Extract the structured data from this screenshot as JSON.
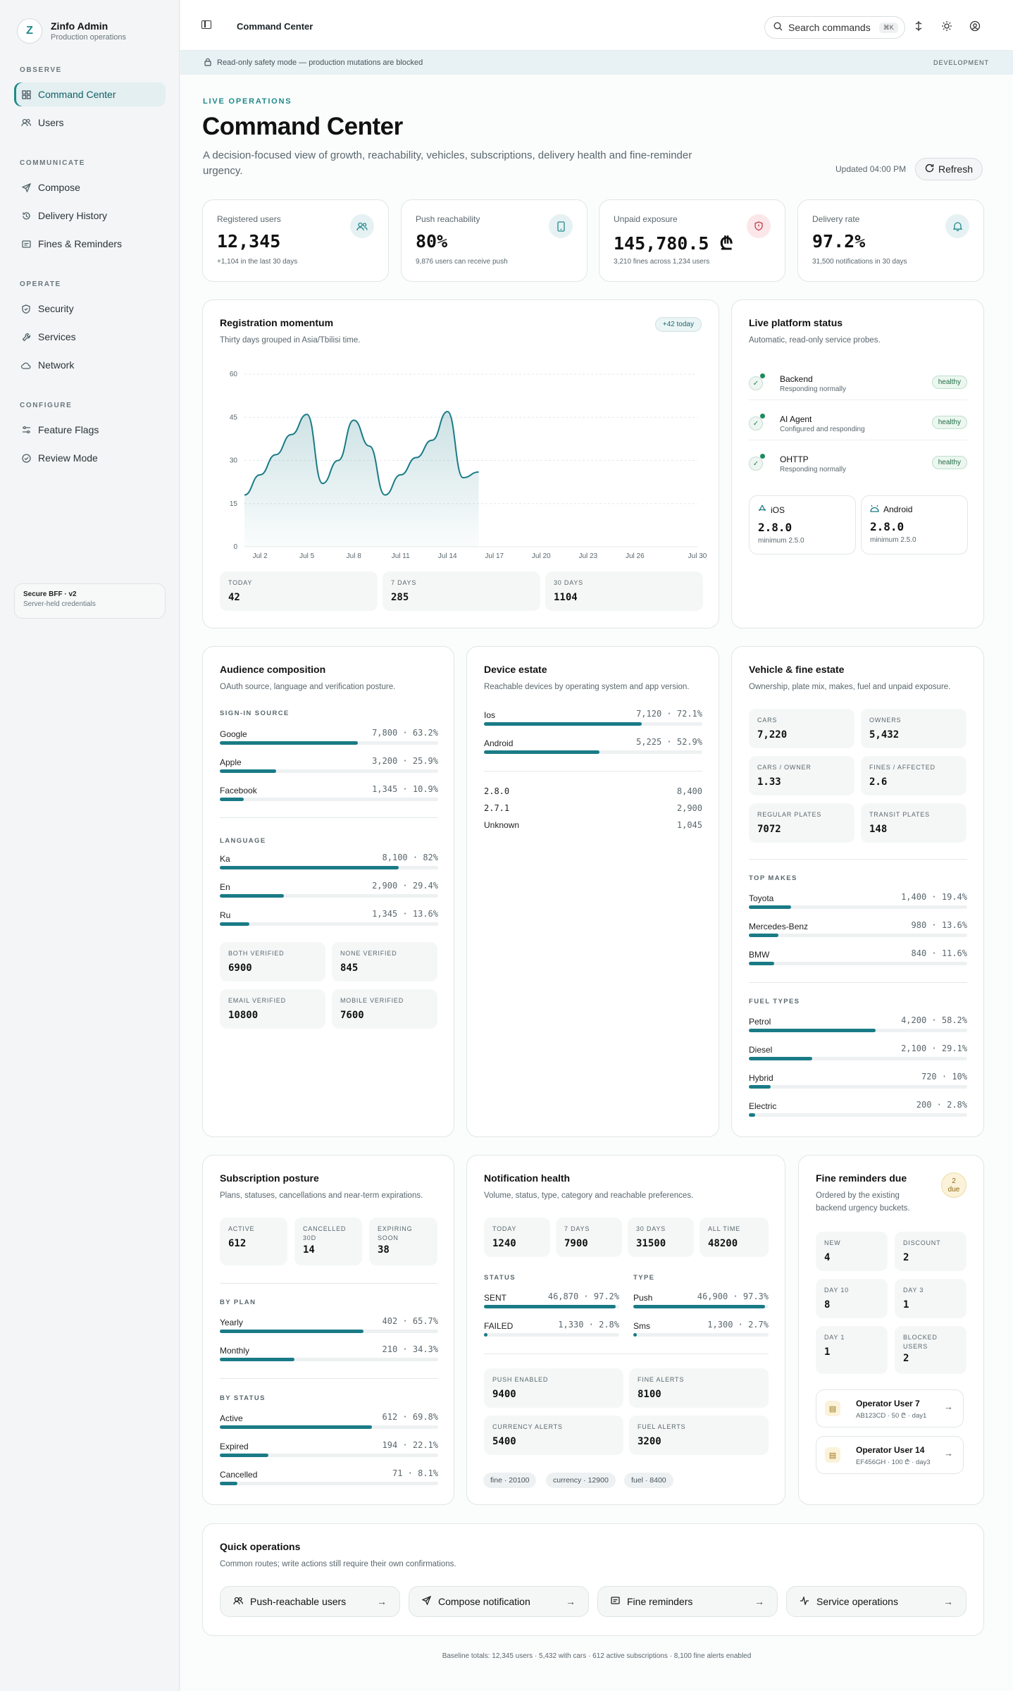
{
  "brand": {
    "name": "Zinfo Admin",
    "subtitle": "Production operations",
    "logo_letter": "Z"
  },
  "nav": {
    "sections": [
      "OBSERVE",
      "COMMUNICATE",
      "OPERATE",
      "CONFIGURE"
    ],
    "items": [
      {
        "label": "Command Center",
        "icon": "grid-icon",
        "active": true
      },
      {
        "label": "Users",
        "icon": "users-icon"
      },
      {
        "label": "Compose",
        "icon": "send-icon"
      },
      {
        "label": "Delivery History",
        "icon": "history-icon"
      },
      {
        "label": "Fines & Reminders",
        "icon": "receipt-icon"
      },
      {
        "label": "Security",
        "icon": "shield-icon"
      },
      {
        "label": "Services",
        "icon": "wrench-icon"
      },
      {
        "label": "Network",
        "icon": "cloud-icon"
      },
      {
        "label": "Feature Flags",
        "icon": "sliders-icon"
      },
      {
        "label": "Review Mode",
        "icon": "check-circle-icon"
      }
    ],
    "footer": {
      "title": "Secure BFF · v2",
      "subtitle": "Server-held credentials"
    }
  },
  "topbar": {
    "title": "Command Center",
    "search_placeholder": "Search commands",
    "search_kbd": "⌘K"
  },
  "banner": {
    "text": "Read-only safety mode — production mutations are blocked",
    "env": "DEVELOPMENT"
  },
  "header": {
    "eyebrow": "LIVE OPERATIONS",
    "title": "Command Center",
    "lede": "A decision-focused view of growth, reachability, vehicles, subscriptions, delivery health and fine-reminder urgency.",
    "updated": "Updated 04:00 PM",
    "refresh": "Refresh"
  },
  "kpis": [
    {
      "label": "Registered users",
      "value": "12,345",
      "sub": "+1,104 in the last 30 days",
      "icon": "users-icon"
    },
    {
      "label": "Push reachability",
      "value": "80%",
      "sub": "9,876 users can receive push",
      "icon": "phone-icon"
    },
    {
      "label": "Unpaid exposure",
      "value": "145,780.5 ₾",
      "sub": "3,210 fines across 1,234 users",
      "icon": "shield-alert-icon"
    },
    {
      "label": "Delivery rate",
      "value": "97.2%",
      "sub": "31,500 notifications in 30 days",
      "icon": "bell-icon"
    }
  ],
  "registration": {
    "title": "Registration momentum",
    "subtitle": "Thirty days grouped in Asia/Tbilisi time.",
    "badge": "+42 today",
    "stats": [
      {
        "label": "TODAY",
        "value": "42"
      },
      {
        "label": "7 DAYS",
        "value": "285"
      },
      {
        "label": "30 DAYS",
        "value": "1104"
      }
    ]
  },
  "chart_data": {
    "type": "area",
    "title": "Registration momentum",
    "x": [
      "Jul 1",
      "Jul 2",
      "Jul 3",
      "Jul 4",
      "Jul 5",
      "Jul 6",
      "Jul 7",
      "Jul 8",
      "Jul 9",
      "Jul 10",
      "Jul 11",
      "Jul 12",
      "Jul 13",
      "Jul 14",
      "Jul 15",
      "Jul 16"
    ],
    "values": [
      18,
      25,
      32,
      39,
      46,
      22,
      30,
      44,
      35,
      18,
      25,
      31,
      37,
      47,
      24,
      26
    ],
    "x_ticks": [
      "Jul 2",
      "Jul 5",
      "Jul 8",
      "Jul 11",
      "Jul 14",
      "Jul 17",
      "Jul 20",
      "Jul 23",
      "Jul 26",
      "Jul 30"
    ],
    "y_ticks": [
      0,
      15,
      30,
      45,
      60
    ],
    "ylim": [
      0,
      60
    ],
    "x_range": [
      "Jul 1",
      "Jul 30"
    ],
    "grid": true,
    "color": "#1a7b86"
  },
  "platform": {
    "title": "Live platform status",
    "subtitle": "Automatic, read-only service probes.",
    "services": [
      {
        "name": "Backend",
        "status": "Responding normally",
        "badge": "healthy"
      },
      {
        "name": "AI Agent",
        "status": "Configured and responding",
        "badge": "healthy"
      },
      {
        "name": "OHTTP",
        "status": "Responding normally",
        "badge": "healthy"
      }
    ],
    "versions": [
      {
        "name": "iOS",
        "version": "2.8.0",
        "min": "minimum 2.5.0",
        "icon": "app-store-icon"
      },
      {
        "name": "Android",
        "version": "2.8.0",
        "min": "minimum 2.5.0",
        "icon": "android-icon"
      }
    ]
  },
  "audience": {
    "title": "Audience composition",
    "subtitle": "OAuth source, language and verification posture.",
    "signin_label": "SIGN-IN SOURCE",
    "signin": [
      {
        "name": "Google",
        "metric": "7,800 · 63.2%",
        "pct": 63.2
      },
      {
        "name": "Apple",
        "metric": "3,200 · 25.9%",
        "pct": 25.9
      },
      {
        "name": "Facebook",
        "metric": "1,345 · 10.9%",
        "pct": 10.9
      }
    ],
    "language_label": "LANGUAGE",
    "languages": [
      {
        "name": "Ka",
        "metric": "8,100 · 82%",
        "pct": 82
      },
      {
        "name": "En",
        "metric": "2,900 · 29.4%",
        "pct": 29.4
      },
      {
        "name": "Ru",
        "metric": "1,345 · 13.6%",
        "pct": 13.6
      }
    ],
    "verification": [
      {
        "label": "BOTH VERIFIED",
        "value": "6900"
      },
      {
        "label": "NONE VERIFIED",
        "value": "845"
      },
      {
        "label": "EMAIL VERIFIED",
        "value": "10800"
      },
      {
        "label": "MOBILE VERIFIED",
        "value": "7600"
      }
    ]
  },
  "devices": {
    "title": "Device estate",
    "subtitle": "Reachable devices by operating system and app version.",
    "os": [
      {
        "name": "Ios",
        "metric": "7,120 · 72.1%",
        "pct": 72.1
      },
      {
        "name": "Android",
        "metric": "5,225 · 52.9%",
        "pct": 52.9
      }
    ],
    "versions": [
      {
        "name": "2.8.0",
        "count": "8,400"
      },
      {
        "name": "2.7.1",
        "count": "2,900"
      },
      {
        "name": "Unknown",
        "count": "1,045"
      }
    ]
  },
  "vehicles": {
    "title": "Vehicle & fine estate",
    "subtitle": "Ownership, plate mix, makes, fuel and unpaid exposure.",
    "stats": [
      {
        "label": "CARS",
        "value": "7,220"
      },
      {
        "label": "OWNERS",
        "value": "5,432"
      },
      {
        "label": "CARS / OWNER",
        "value": "1.33"
      },
      {
        "label": "FINES / AFFECTED",
        "value": "2.6"
      },
      {
        "label": "REGULAR PLATES",
        "value": "7072"
      },
      {
        "label": "TRANSIT PLATES",
        "value": "148"
      }
    ],
    "makes_label": "TOP MAKES",
    "makes": [
      {
        "name": "Toyota",
        "metric": "1,400 · 19.4%",
        "pct": 19.4
      },
      {
        "name": "Mercedes-Benz",
        "metric": "980 · 13.6%",
        "pct": 13.6
      },
      {
        "name": "BMW",
        "metric": "840 · 11.6%",
        "pct": 11.6
      }
    ],
    "fuel_label": "FUEL TYPES",
    "fuels": [
      {
        "name": "Petrol",
        "metric": "4,200 · 58.2%",
        "pct": 58.2
      },
      {
        "name": "Diesel",
        "metric": "2,100 · 29.1%",
        "pct": 29.1
      },
      {
        "name": "Hybrid",
        "metric": "720 · 10%",
        "pct": 10
      },
      {
        "name": "Electric",
        "metric": "200 · 2.8%",
        "pct": 2.8
      }
    ]
  },
  "subscriptions": {
    "title": "Subscription posture",
    "subtitle": "Plans, statuses, cancellations and near-term expirations.",
    "stats": [
      {
        "label": "ACTIVE",
        "value": "612"
      },
      {
        "label": "CANCELLED 30D",
        "value": "14"
      },
      {
        "label": "EXPIRING SOON",
        "value": "38"
      }
    ],
    "plan_label": "BY PLAN",
    "plans": [
      {
        "name": "Yearly",
        "metric": "402 · 65.7%",
        "pct": 65.7
      },
      {
        "name": "Monthly",
        "metric": "210 · 34.3%",
        "pct": 34.3
      }
    ],
    "status_label": "BY STATUS",
    "statuses": [
      {
        "name": "Active",
        "metric": "612 · 69.8%",
        "pct": 69.8
      },
      {
        "name": "Expired",
        "metric": "194 · 22.1%",
        "pct": 22.1
      },
      {
        "name": "Cancelled",
        "metric": "71 · 8.1%",
        "pct": 8.1
      }
    ]
  },
  "notifications": {
    "title": "Notification health",
    "subtitle": "Volume, status, type, category and reachable preferences.",
    "stats": [
      {
        "label": "TODAY",
        "value": "1240"
      },
      {
        "label": "7 DAYS",
        "value": "7900"
      },
      {
        "label": "30 DAYS",
        "value": "31500"
      },
      {
        "label": "ALL TIME",
        "value": "48200"
      }
    ],
    "status_label": "STATUS",
    "statuses": [
      {
        "name": "SENT",
        "metric": "46,870 · 97.2%",
        "pct": 97.2
      },
      {
        "name": "FAILED",
        "metric": "1,330 · 2.8%",
        "pct": 2.8
      }
    ],
    "type_label": "TYPE",
    "types": [
      {
        "name": "Push",
        "metric": "46,900 · 97.3%",
        "pct": 97.3
      },
      {
        "name": "Sms",
        "metric": "1,300 · 2.7%",
        "pct": 2.7
      }
    ],
    "prefs": [
      {
        "label": "PUSH ENABLED",
        "value": "9400"
      },
      {
        "label": "FINE ALERTS",
        "value": "8100"
      },
      {
        "label": "CURRENCY ALERTS",
        "value": "5400"
      },
      {
        "label": "FUEL ALERTS",
        "value": "3200"
      }
    ],
    "tags": [
      "fine · 20100",
      "currency · 12900",
      "fuel · 8400"
    ]
  },
  "reminders": {
    "title": "Fine reminders due",
    "subtitle": "Ordered by the existing backend urgency buckets.",
    "badge_num": "2",
    "badge_word": "due",
    "stats": [
      {
        "label": "NEW",
        "value": "4"
      },
      {
        "label": "DISCOUNT",
        "value": "2"
      },
      {
        "label": "DAY 10",
        "value": "8"
      },
      {
        "label": "DAY 3",
        "value": "1"
      },
      {
        "label": "DAY 1",
        "value": "1"
      },
      {
        "label": "BLOCKED USERS",
        "value": "2"
      }
    ],
    "items": [
      {
        "name": "Operator User 7",
        "detail": "AB123CD · 50 ₾ · day1"
      },
      {
        "name": "Operator User 14",
        "detail": "EF456GH · 100 ₾ · day3"
      }
    ]
  },
  "quick": {
    "title": "Quick operations",
    "subtitle": "Common routes; write actions still require their own confirmations.",
    "buttons": [
      {
        "label": "Push-reachable users",
        "icon": "users-icon"
      },
      {
        "label": "Compose notification",
        "icon": "send-icon"
      },
      {
        "label": "Fine reminders",
        "icon": "receipt-icon"
      },
      {
        "label": "Service operations",
        "icon": "activity-icon"
      }
    ]
  },
  "footer": "Baseline totals: 12,345 users · 5,432 with cars · 612 active subscriptions · 8,100 fine alerts enabled"
}
